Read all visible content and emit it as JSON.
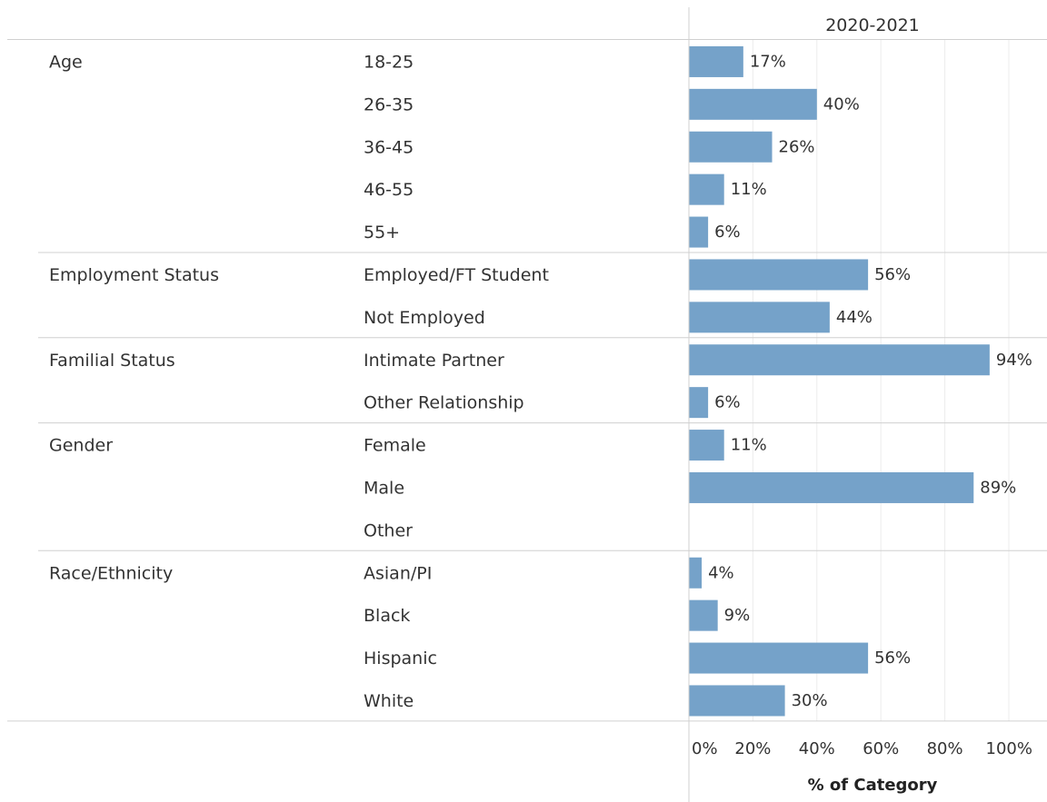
{
  "chart_data": {
    "type": "bar",
    "column_header": "2020-2021",
    "xlabel": "% of Category",
    "xlim": [
      0,
      100
    ],
    "x_ticks": [
      "0%",
      "20%",
      "40%",
      "60%",
      "80%",
      "100%"
    ],
    "x_tick_values": [
      0,
      20,
      40,
      60,
      80,
      100
    ],
    "bar_color": "#75a2c9",
    "groups": [
      {
        "name": "Age",
        "rows": [
          {
            "category": "18-25",
            "value": 17,
            "label": "17%"
          },
          {
            "category": "26-35",
            "value": 40,
            "label": "40%"
          },
          {
            "category": "36-45",
            "value": 26,
            "label": "26%"
          },
          {
            "category": "46-55",
            "value": 11,
            "label": "11%"
          },
          {
            "category": "55+",
            "value": 6,
            "label": "6%"
          }
        ]
      },
      {
        "name": "Employment Status",
        "rows": [
          {
            "category": "Employed/FT Student",
            "value": 56,
            "label": "56%"
          },
          {
            "category": "Not Employed",
            "value": 44,
            "label": "44%"
          }
        ]
      },
      {
        "name": "Familial Status",
        "rows": [
          {
            "category": "Intimate Partner",
            "value": 94,
            "label": "94%"
          },
          {
            "category": "Other Relationship",
            "value": 6,
            "label": "6%"
          }
        ]
      },
      {
        "name": "Gender",
        "rows": [
          {
            "category": "Female",
            "value": 11,
            "label": "11%"
          },
          {
            "category": "Male",
            "value": 89,
            "label": "89%"
          },
          {
            "category": "Other",
            "value": null,
            "label": ""
          }
        ]
      },
      {
        "name": "Race/Ethnicity",
        "rows": [
          {
            "category": "Asian/PI",
            "value": 4,
            "label": "4%"
          },
          {
            "category": "Black",
            "value": 9,
            "label": "9%"
          },
          {
            "category": "Hispanic",
            "value": 56,
            "label": "56%"
          },
          {
            "category": "White",
            "value": 30,
            "label": "30%"
          }
        ]
      }
    ]
  }
}
